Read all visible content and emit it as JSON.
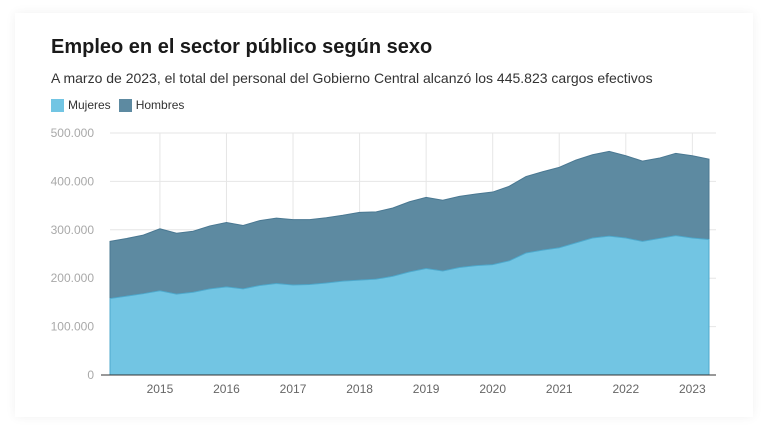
{
  "chart_data": {
    "type": "area",
    "stacked": true,
    "title": "Empleo en el sector público según sexo",
    "subtitle": "A marzo de 2023, el total del personal del Gobierno Central alcanzó los 445.823 cargos efectivos",
    "xlabel": "",
    "ylabel": "",
    "x": [
      2014.25,
      2014.5,
      2014.75,
      2015.0,
      2015.25,
      2015.5,
      2015.75,
      2016.0,
      2016.25,
      2016.5,
      2016.75,
      2017.0,
      2017.25,
      2017.5,
      2017.75,
      2018.0,
      2018.25,
      2018.5,
      2018.75,
      2019.0,
      2019.25,
      2019.5,
      2019.75,
      2020.0,
      2020.25,
      2020.5,
      2020.75,
      2021.0,
      2021.25,
      2021.5,
      2021.75,
      2022.0,
      2022.25,
      2022.5,
      2022.75,
      2023.0,
      2023.25
    ],
    "series": [
      {
        "name": "Mujeres",
        "color": "#72c5e3",
        "values": [
          158000,
          163000,
          168000,
          174000,
          167000,
          171000,
          178000,
          182000,
          178000,
          185000,
          189000,
          186000,
          187000,
          190000,
          194000,
          196000,
          198000,
          204000,
          213000,
          220000,
          215000,
          222000,
          226000,
          228000,
          236000,
          252000,
          258000,
          263000,
          273000,
          283000,
          287000,
          283000,
          276000,
          282000,
          288000,
          283000,
          280000
        ]
      },
      {
        "name": "Hombres",
        "color": "#5d8aa1",
        "values": [
          118000,
          119000,
          121000,
          128000,
          126000,
          126000,
          130000,
          133000,
          131000,
          134000,
          135000,
          135000,
          134000,
          135000,
          136000,
          140000,
          139000,
          141000,
          145000,
          147000,
          146000,
          147000,
          148000,
          150000,
          154000,
          158000,
          162000,
          166000,
          171000,
          172000,
          175000,
          170000,
          166000,
          166000,
          170000,
          170000,
          166000
        ]
      }
    ],
    "xticks": [
      "2015",
      "2016",
      "2017",
      "2018",
      "2019",
      "2020",
      "2021",
      "2022",
      "2023"
    ],
    "xtick_values": [
      2015,
      2016,
      2017,
      2018,
      2019,
      2020,
      2021,
      2022,
      2023
    ],
    "yticks": [
      "0",
      "100.000",
      "200.000",
      "300.000",
      "400.000",
      "500.000"
    ],
    "ytick_values": [
      0,
      100000,
      200000,
      300000,
      400000,
      500000
    ],
    "ylim": [
      0,
      500000
    ],
    "xlim": [
      2014.25,
      2023.25
    ],
    "legend": "top-left",
    "grid": true,
    "gridline_color": "#e6e6e6"
  }
}
